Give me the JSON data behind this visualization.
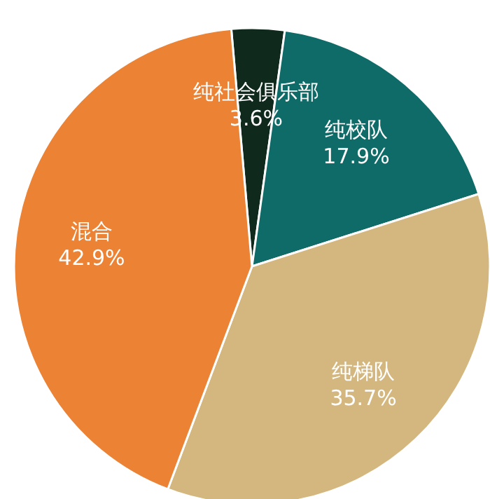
{
  "chart_data": {
    "type": "pie",
    "categories": [
      "纯社会俱乐部",
      "纯校队",
      "纯梯队",
      "混合"
    ],
    "values": [
      3.6,
      17.9,
      35.7,
      42.9
    ],
    "value_labels": [
      "3.6%",
      "17.9%",
      "35.7%",
      "42.9%"
    ],
    "colors": [
      "#0f2a1c",
      "#0e6b68",
      "#d4b77f",
      "#ec8234"
    ],
    "legend": false
  }
}
